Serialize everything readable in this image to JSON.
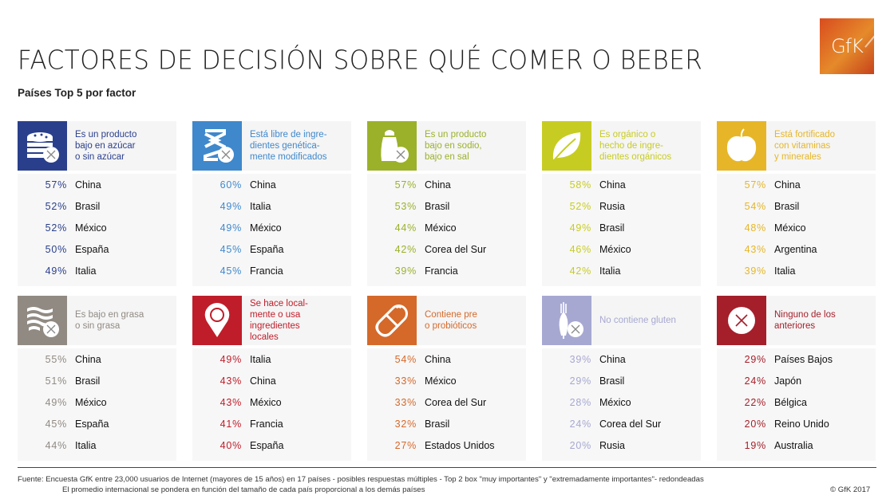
{
  "header": {
    "title": "FACTORES DE DECISIÓN SOBRE QUÉ COMER O BEBER",
    "subtitle": "Países Top 5 por factor",
    "logo_text": "GfK"
  },
  "chart_data": {
    "type": "table",
    "title": "FACTORES DE DECISIÓN SOBRE QUÉ COMER O BEBER",
    "subtitle": "Países Top 5 por factor",
    "factors": [
      {
        "label": "Es un producto\nbajo en azúcar\no sin azúcar",
        "icon": "cake-no-sugar-icon",
        "color": "#2a3f8c",
        "rows": [
          {
            "pct": "57%",
            "country": "China"
          },
          {
            "pct": "52%",
            "country": "Brasil"
          },
          {
            "pct": "52%",
            "country": "México"
          },
          {
            "pct": "50%",
            "country": "España"
          },
          {
            "pct": "49%",
            "country": "Italia"
          }
        ]
      },
      {
        "label": "Está libre de ingre-\ndientes genética-\nmente modificados",
        "icon": "dna-no-gmo-icon",
        "color": "#3f88cc",
        "rows": [
          {
            "pct": "60%",
            "country": "China"
          },
          {
            "pct": "49%",
            "country": "Italia"
          },
          {
            "pct": "49%",
            "country": "México"
          },
          {
            "pct": "45%",
            "country": "España"
          },
          {
            "pct": "45%",
            "country": "Francia"
          }
        ]
      },
      {
        "label": "Es un producto\nbajo en sodio,\nbajo en sal",
        "icon": "salt-shaker-icon",
        "color": "#9bb12a",
        "rows": [
          {
            "pct": "57%",
            "country": "China"
          },
          {
            "pct": "53%",
            "country": "Brasil"
          },
          {
            "pct": "44%",
            "country": "México"
          },
          {
            "pct": "42%",
            "country": "Corea del Sur"
          },
          {
            "pct": "39%",
            "country": "Francia"
          }
        ]
      },
      {
        "label": "Es orgánico o\nhecho de ingre-\ndientes orgánicos",
        "icon": "leaf-icon",
        "color": "#c7cc22",
        "rows": [
          {
            "pct": "58%",
            "country": "China"
          },
          {
            "pct": "52%",
            "country": "Rusia"
          },
          {
            "pct": "49%",
            "country": "Brasil"
          },
          {
            "pct": "46%",
            "country": "México"
          },
          {
            "pct": "42%",
            "country": "Italia"
          }
        ]
      },
      {
        "label": "Está fortificado\ncon vitaminas\ny minerales",
        "icon": "apple-icon",
        "color": "#e6b628",
        "rows": [
          {
            "pct": "57%",
            "country": "China"
          },
          {
            "pct": "54%",
            "country": "Brasil"
          },
          {
            "pct": "48%",
            "country": "México"
          },
          {
            "pct": "43%",
            "country": "Argentina"
          },
          {
            "pct": "39%",
            "country": "Italia"
          }
        ]
      },
      {
        "label": "Es bajo en grasa\no sin grasa",
        "icon": "bacon-no-fat-icon",
        "color": "#918a83",
        "rows": [
          {
            "pct": "55%",
            "country": "China"
          },
          {
            "pct": "51%",
            "country": "Brasil"
          },
          {
            "pct": "49%",
            "country": "México"
          },
          {
            "pct": "45%",
            "country": "España"
          },
          {
            "pct": "44%",
            "country": "Italia"
          }
        ]
      },
      {
        "label": "Se hace local-\nmente o usa\ningredientes\nlocales",
        "icon": "location-pin-icon",
        "color": "#c01d2a",
        "rows": [
          {
            "pct": "49%",
            "country": "Italia"
          },
          {
            "pct": "43%",
            "country": "China"
          },
          {
            "pct": "43%",
            "country": "México"
          },
          {
            "pct": "41%",
            "country": "Francia"
          },
          {
            "pct": "40%",
            "country": "España"
          }
        ]
      },
      {
        "label": "Contiene pre\no probióticos",
        "icon": "capsule-icon",
        "color": "#d5692a",
        "rows": [
          {
            "pct": "54%",
            "country": "China"
          },
          {
            "pct": "33%",
            "country": "México"
          },
          {
            "pct": "33%",
            "country": "Corea del Sur"
          },
          {
            "pct": "32%",
            "country": "Brasil"
          },
          {
            "pct": "27%",
            "country": "Estados Unidos"
          }
        ]
      },
      {
        "label": "No contiene gluten",
        "icon": "wheat-no-gluten-icon",
        "color": "#a7a8d2",
        "rows": [
          {
            "pct": "39%",
            "country": "China"
          },
          {
            "pct": "29%",
            "country": "Brasil"
          },
          {
            "pct": "28%",
            "country": "México"
          },
          {
            "pct": "24%",
            "country": "Corea del Sur"
          },
          {
            "pct": "20%",
            "country": "Rusia"
          }
        ]
      },
      {
        "label": "Ninguno de los\nanteriores",
        "icon": "x-circle-icon",
        "color": "#a51f2a",
        "rows": [
          {
            "pct": "29%",
            "country": "Países Bajos"
          },
          {
            "pct": "24%",
            "country": "Japón"
          },
          {
            "pct": "22%",
            "country": "Bélgica"
          },
          {
            "pct": "20%",
            "country": "Reino Unido"
          },
          {
            "pct": "19%",
            "country": "Australia"
          }
        ]
      }
    ]
  },
  "footer": {
    "source": "Fuente: Encuesta GfK entre 23,000 usuarios de Internet (mayores de 15 años) en 17 países - posibles respuestas múltiples - Top 2 box \"muy importantes\" y \"extremadamente importantes\"- redondeadas",
    "note": "El promedio internacional se pondera en función del tamaño de cada país proporcional a los demás países",
    "copyright": "© GfK 2017"
  }
}
